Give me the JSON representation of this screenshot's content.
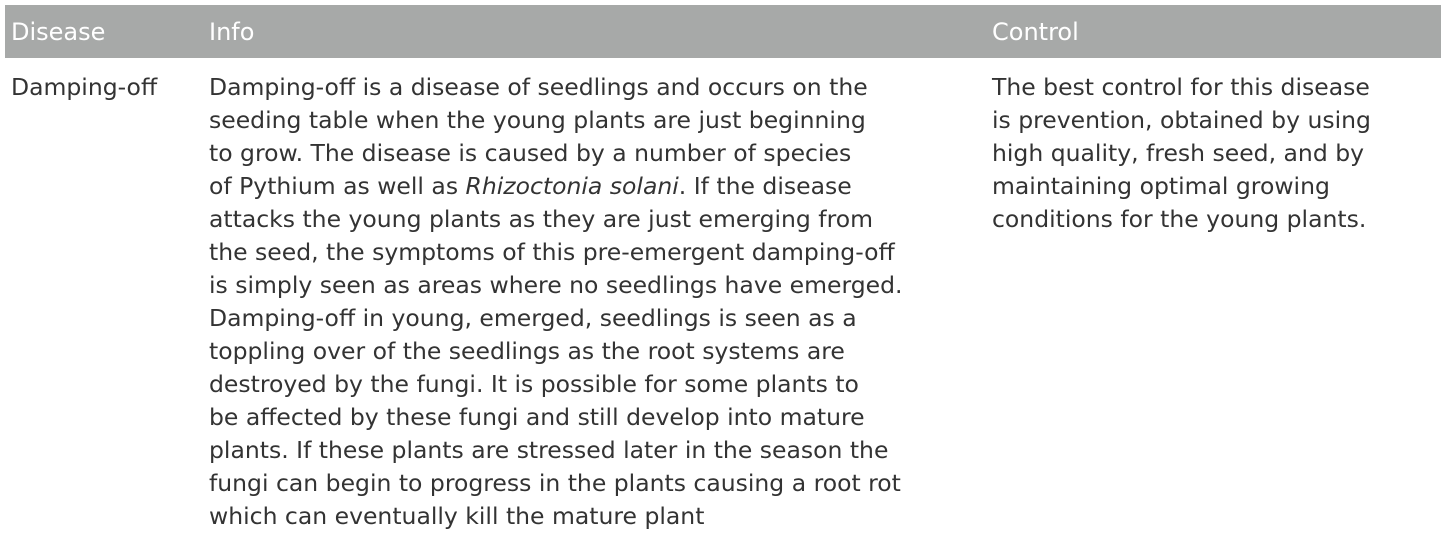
{
  "table": {
    "headers": [
      "Disease",
      "Info",
      "Control"
    ],
    "rows": [
      {
        "disease": "Damping-off",
        "info_lines": [
          "Damping-off is a disease of seedlings and occurs on the",
          "seeding table when the young plants are just beginning",
          "to grow. The disease is caused by a number of species",
          [
            "of Pythium as well as ",
            {
              "italic": "Rhizoctonia solani"
            },
            ". If the disease"
          ],
          "attacks the young plants as they are just emerging from",
          "the seed, the symptoms of this pre-emergent damping-off",
          "is simply seen as areas where no seedlings have emerged.",
          "Damping-off in young, emerged, seedlings is seen as a",
          "toppling over of the seedlings as the root systems are",
          "destroyed by the fungi. It is possible for some plants to",
          "be affected by these fungi and still develop into mature",
          "plants. If these plants are stressed later in the season the",
          "fungi can begin to progress in the plants causing a root rot",
          "which can eventually kill the mature plant"
        ],
        "control_lines": [
          "The best control for this disease",
          "is prevention, obtained by using",
          "high quality, fresh seed, and by",
          "maintaining optimal growing",
          "conditions for the young plants."
        ]
      }
    ]
  }
}
